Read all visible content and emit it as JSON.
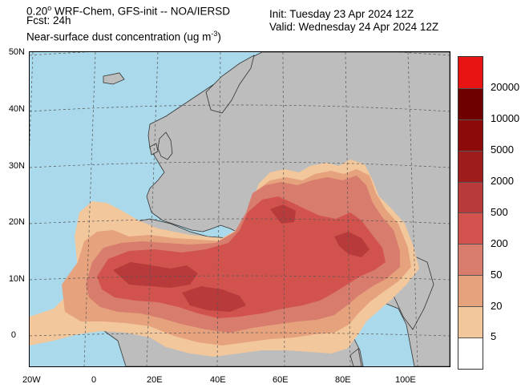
{
  "header": {
    "line1_pre": "0.20",
    "line1_deg": "o",
    "line1_post": " WRF-Chem, GFS-init -- NOA/IERSD",
    "fcst": "Fcst: 24h",
    "title_pre": "Near-surface dust concentration (ug m",
    "title_exp": "-3",
    "title_post": ")",
    "init": "Init: Tuesday 23 Apr 2024  12Z",
    "valid": "Valid: Wednesday 24 Apr 2024  12Z"
  },
  "axes": {
    "lat_labels": [
      "50N",
      "40N",
      "30N",
      "20N",
      "10N",
      "0"
    ],
    "lon_labels": [
      "20W",
      "0",
      "20E",
      "40E",
      "60E",
      "80E",
      "100E"
    ]
  },
  "colorbar": {
    "labels": [
      "20000",
      "10000",
      "5000",
      "2000",
      "500",
      "200",
      "50",
      "20",
      "5"
    ],
    "colors": [
      "#e81414",
      "#6e0000",
      "#8c0a0a",
      "#9e1c1c",
      "#b83a3a",
      "#d2534d",
      "#d87d6e",
      "#e6a27c",
      "#f2c79b",
      "#ffffff"
    ]
  },
  "map_colors": {
    "ocean": "#a9d9ea",
    "land": "#bdbdbd",
    "border": "#333333",
    "grid": "#555555"
  }
}
